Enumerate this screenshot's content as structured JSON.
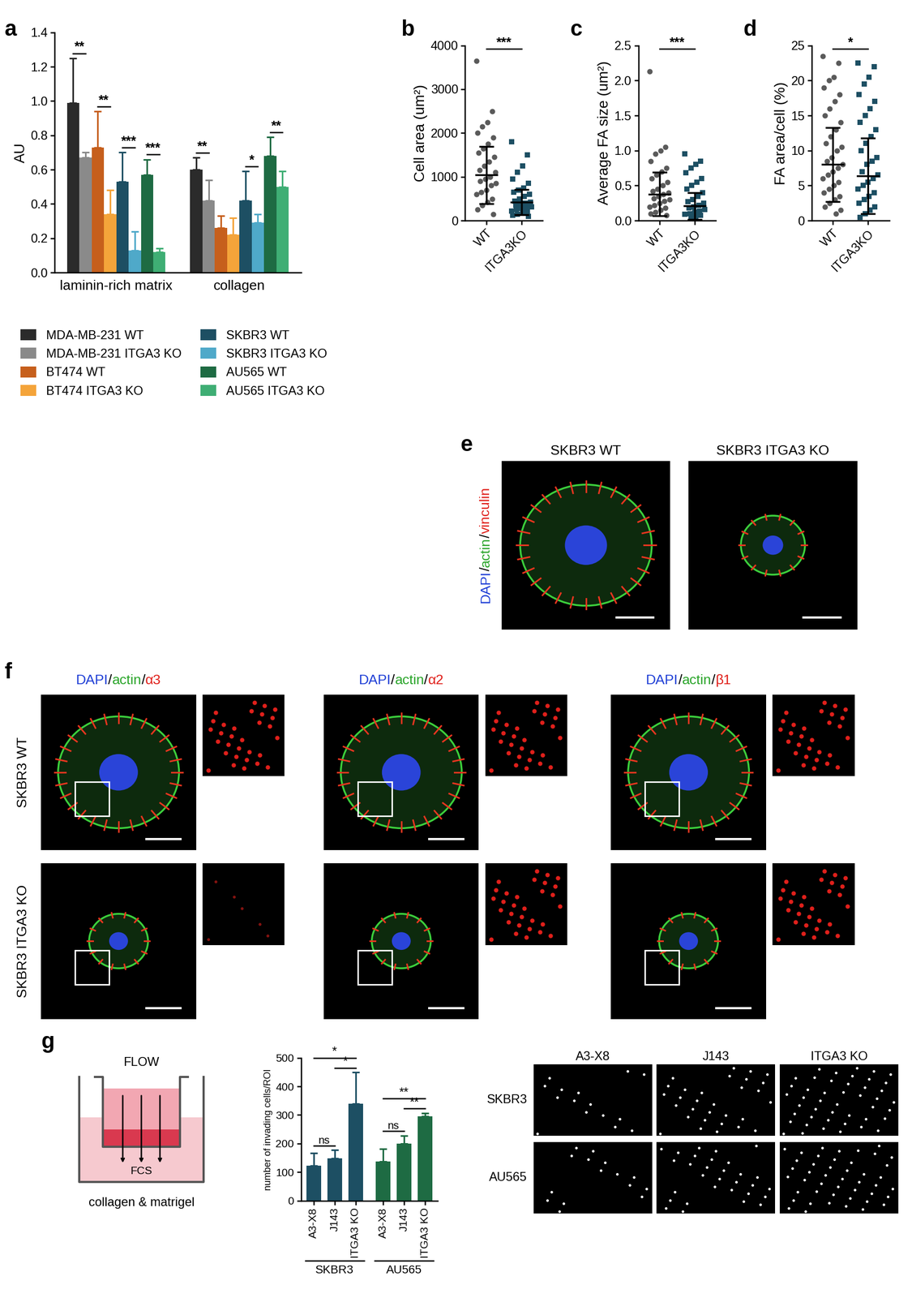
{
  "chart_data": [
    {
      "panel": "a",
      "type": "bar",
      "ylabel": "AU",
      "categories": [
        "laminin-rich matrix",
        "collagen"
      ],
      "series": [
        {
          "name": "MDA-MB-231 WT",
          "color": "#2b2b2b",
          "values": [
            0.99,
            0.6
          ],
          "errors": [
            0.26,
            0.07
          ]
        },
        {
          "name": "MDA-MB-231 ITGA3 KO",
          "color": "#8a8a8a",
          "values": [
            0.67,
            0.42
          ],
          "errors": [
            0.03,
            0.12
          ]
        },
        {
          "name": "BT474 WT",
          "color": "#c65f1c",
          "values": [
            0.73,
            0.26
          ],
          "errors": [
            0.21,
            0.07
          ]
        },
        {
          "name": "BT474 ITGA3 KO",
          "color": "#f4a43a",
          "values": [
            0.34,
            0.22
          ],
          "errors": [
            0.14,
            0.1
          ]
        },
        {
          "name": "SKBR3 WT",
          "color": "#1d4f63",
          "values": [
            0.53,
            0.42
          ],
          "errors": [
            0.17,
            0.17
          ]
        },
        {
          "name": "SKBR3 ITGA3 KO",
          "color": "#4fa9c9",
          "values": [
            0.13,
            0.29
          ],
          "errors": [
            0.11,
            0.05
          ]
        },
        {
          "name": "AU565 WT",
          "color": "#1e6b43",
          "values": [
            0.57,
            0.68
          ],
          "errors": [
            0.09,
            0.11
          ]
        },
        {
          "name": "AU565 ITGA3 KO",
          "color": "#3fae74",
          "values": [
            0.12,
            0.5
          ],
          "errors": [
            0.02,
            0.09
          ]
        }
      ],
      "ylim": [
        0,
        1.4
      ],
      "yticks": [
        {
          "value": 0,
          "label": "0.0"
        },
        {
          "value": 0.2,
          "label": "0.2"
        },
        {
          "value": 0.4,
          "label": "0.4"
        },
        {
          "value": 0.6,
          "label": "0.6"
        },
        {
          "value": 0.8,
          "label": "0.8"
        },
        {
          "value": 1.0,
          "label": "1.0"
        },
        {
          "value": 1.2,
          "label": "1.2"
        },
        {
          "value": 1.4,
          "label": "1.4"
        }
      ],
      "legend": "upper left",
      "annotations": [
        {
          "group": "laminin-rich matrix",
          "between": [
            "MDA-MB-231 WT",
            "MDA-MB-231 ITGA3 KO"
          ],
          "text": "**"
        },
        {
          "group": "laminin-rich matrix",
          "between": [
            "BT474 WT",
            "BT474 ITGA3 KO"
          ],
          "text": "**"
        },
        {
          "group": "laminin-rich matrix",
          "between": [
            "SKBR3 WT",
            "SKBR3 ITGA3 KO"
          ],
          "text": "***"
        },
        {
          "group": "laminin-rich matrix",
          "between": [
            "AU565 WT",
            "AU565 ITGA3 KO"
          ],
          "text": "***"
        },
        {
          "group": "collagen",
          "between": [
            "MDA-MB-231 WT",
            "MDA-MB-231 ITGA3 KO"
          ],
          "text": "**"
        },
        {
          "group": "collagen",
          "between": [
            "SKBR3 WT",
            "SKBR3 ITGA3 KO"
          ],
          "text": "*"
        },
        {
          "group": "collagen",
          "between": [
            "AU565 WT",
            "AU565 ITGA3 KO"
          ],
          "text": "**"
        }
      ]
    },
    {
      "panel": "b",
      "type": "scatter",
      "ylabel": "Cell area (um²)",
      "ylim": [
        0,
        4000
      ],
      "yticks": [
        0,
        1000,
        2000,
        3000,
        4000
      ],
      "groups": [
        {
          "category": "WT",
          "color": "#5a5a5a",
          "marker": "circle",
          "mean": 1040,
          "sd": 650,
          "values": [
            3650,
            2500,
            2250,
            2150,
            2000,
            1900,
            1750,
            1650,
            1550,
            1450,
            1350,
            1250,
            1150,
            1100,
            1000,
            950,
            900,
            850,
            800,
            700,
            650,
            600,
            500,
            420,
            350,
            250,
            150
          ]
        },
        {
          "category": "ITGA3KO",
          "color": "#1d4f63",
          "marker": "square",
          "mean": 420,
          "sd": 290,
          "values": [
            1800,
            1500,
            1250,
            1100,
            950,
            850,
            750,
            700,
            650,
            600,
            550,
            500,
            450,
            420,
            400,
            380,
            350,
            320,
            300,
            280,
            250,
            220,
            200,
            180,
            150,
            120,
            100
          ]
        }
      ],
      "annotations": [
        {
          "between": [
            "WT",
            "ITGA3KO"
          ],
          "text": "***"
        }
      ]
    },
    {
      "panel": "c",
      "type": "scatter",
      "ylabel": "Average FA size (um²)",
      "ylim": [
        0,
        2.5
      ],
      "yticks": [
        {
          "value": 0,
          "label": "0.0"
        },
        {
          "value": 0.5,
          "label": "0.5"
        },
        {
          "value": 1.0,
          "label": "1.0"
        },
        {
          "value": 1.5,
          "label": "1.5"
        },
        {
          "value": 2.0,
          "label": "2.0"
        },
        {
          "value": 2.5,
          "label": "2.5"
        }
      ],
      "groups": [
        {
          "category": "WT",
          "color": "#5a5a5a",
          "marker": "circle",
          "mean": 0.38,
          "sd": 0.31,
          "values": [
            2.13,
            1.05,
            1.0,
            0.95,
            0.85,
            0.75,
            0.7,
            0.65,
            0.6,
            0.55,
            0.5,
            0.45,
            0.42,
            0.4,
            0.38,
            0.35,
            0.32,
            0.3,
            0.28,
            0.25,
            0.22,
            0.2,
            0.18,
            0.15,
            0.12,
            0.1,
            0.08
          ]
        },
        {
          "category": "ITGA3KO",
          "color": "#1d4f63",
          "marker": "square",
          "mean": 0.21,
          "sd": 0.19,
          "values": [
            0.95,
            0.85,
            0.8,
            0.75,
            0.68,
            0.6,
            0.55,
            0.5,
            0.45,
            0.4,
            0.35,
            0.3,
            0.27,
            0.25,
            0.22,
            0.2,
            0.18,
            0.16,
            0.14,
            0.12,
            0.1,
            0.09,
            0.08,
            0.06,
            0.05
          ]
        }
      ],
      "annotations": [
        {
          "between": [
            "WT",
            "ITGA3KO"
          ],
          "text": "***"
        }
      ]
    },
    {
      "panel": "d",
      "type": "scatter",
      "ylabel": "FA area/cell (%)",
      "ylim": [
        0,
        25
      ],
      "yticks": [
        0,
        5,
        10,
        15,
        20,
        25
      ],
      "groups": [
        {
          "category": "WT",
          "color": "#5a5a5a",
          "marker": "circle",
          "mean": 8.0,
          "sd": 5.3,
          "values": [
            23.5,
            22.5,
            20.5,
            20,
            19,
            18,
            17,
            16,
            15,
            14,
            13,
            12,
            11,
            10.5,
            10,
            9,
            8.5,
            8,
            7.5,
            7,
            6.5,
            6,
            5.5,
            5,
            4.5,
            4,
            3.5,
            3,
            2.5,
            2,
            1.5,
            1
          ]
        },
        {
          "category": "ITGA3KO",
          "color": "#1d4f63",
          "marker": "square",
          "mean": 6.4,
          "sd": 5.4,
          "values": [
            22.5,
            22,
            20.5,
            19.5,
            18,
            17,
            16,
            15,
            14,
            13,
            12,
            11,
            10,
            9,
            8.5,
            8,
            7,
            6.5,
            6,
            5.5,
            5,
            4.5,
            4,
            3.5,
            3,
            2.5,
            2,
            1.5,
            1,
            0.5
          ]
        }
      ],
      "annotations": [
        {
          "between": [
            "WT",
            "ITGA3KO"
          ],
          "text": "*"
        }
      ]
    },
    {
      "panel": "e",
      "type": "image",
      "titles": [
        "SKBR3 WT",
        "SKBR3 ITGA3 KO"
      ],
      "label_parts": [
        {
          "text": "DAPI",
          "color": "#1f3fd6"
        },
        {
          "text": "/",
          "color": "#000000"
        },
        {
          "text": "actin",
          "color": "#2aa52a"
        },
        {
          "text": "/",
          "color": "#000000"
        },
        {
          "text": "vinculin",
          "color": "#e0201b"
        }
      ]
    },
    {
      "panel": "f",
      "type": "image",
      "rows": [
        "SKBR3 WT",
        "SKBR3 ITGA3 KO"
      ],
      "columns": [
        [
          {
            "text": "DAPI",
            "color": "#1f3fd6"
          },
          {
            "text": "/",
            "color": "#000000"
          },
          {
            "text": "actin",
            "color": "#2aa52a"
          },
          {
            "text": "/",
            "color": "#000000"
          },
          {
            "text": "α3",
            "color": "#e0201b"
          }
        ],
        [
          {
            "text": "DAPI",
            "color": "#1f3fd6"
          },
          {
            "text": "/",
            "color": "#000000"
          },
          {
            "text": "actin",
            "color": "#2aa52a"
          },
          {
            "text": "/",
            "color": "#000000"
          },
          {
            "text": "α2",
            "color": "#e0201b"
          }
        ],
        [
          {
            "text": "DAPI",
            "color": "#1f3fd6"
          },
          {
            "text": "/",
            "color": "#000000"
          },
          {
            "text": "actin",
            "color": "#2aa52a"
          },
          {
            "text": "/",
            "color": "#000000"
          },
          {
            "text": "β1",
            "color": "#e0201b"
          }
        ]
      ]
    },
    {
      "panel": "g",
      "type": "bar",
      "ylabel": "number of invading cells/ROI",
      "schematic": {
        "top": "FLOW",
        "well": "FCS",
        "caption": "collagen & matrigel"
      },
      "ylim": [
        0,
        500
      ],
      "yticks": [
        0,
        100,
        200,
        300,
        400,
        500
      ],
      "groups": [
        {
          "name": "SKBR3",
          "color": "#1d4f63",
          "categories": [
            "A3-X8",
            "J143",
            "ITGA3 KO"
          ],
          "values": [
            122,
            148,
            340
          ],
          "errors": [
            45,
            30,
            110
          ],
          "annotations": [
            {
              "between": [
                "A3-X8",
                "J143"
              ],
              "text": "ns"
            },
            {
              "between": [
                "J143",
                "ITGA3 KO"
              ],
              "text": "*"
            },
            {
              "between": [
                "A3-X8",
                "ITGA3 KO"
              ],
              "text": "*"
            }
          ]
        },
        {
          "name": "AU565",
          "color": "#1e6b43",
          "categories": [
            "A3-X8",
            "J143",
            "ITGA3 KO"
          ],
          "values": [
            137,
            200,
            295
          ],
          "errors": [
            45,
            28,
            12
          ],
          "annotations": [
            {
              "between": [
                "A3-X8",
                "J143"
              ],
              "text": "ns"
            },
            {
              "between": [
                "J143",
                "ITGA3 KO"
              ],
              "text": "**"
            },
            {
              "between": [
                "A3-X8",
                "ITGA3 KO"
              ],
              "text": "**"
            }
          ]
        }
      ]
    },
    {
      "type": "image",
      "columns": [
        "A3-X8",
        "J143",
        "ITGA3 KO"
      ],
      "rows": [
        "SKBR3",
        "AU565"
      ]
    }
  ]
}
